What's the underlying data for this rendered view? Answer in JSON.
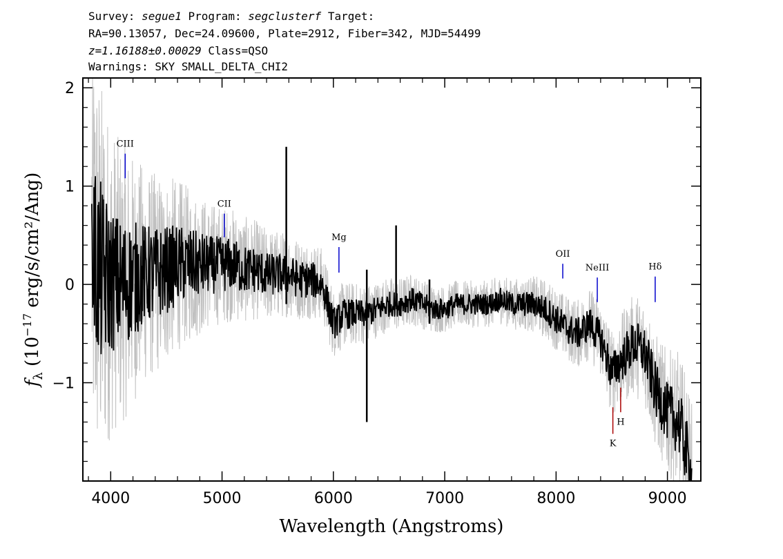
{
  "header": {
    "survey_label": "Survey:",
    "survey": "segue1",
    "program_label": "Program:",
    "program": "segclusterf",
    "target_label": "Target:",
    "line2": "RA=90.13057, Dec=24.09600, Plate=2912, Fiber=342, MJD=54499",
    "redshift": "z=1.16188±0.00029",
    "class_text": "Class=QSO",
    "warnings": "Warnings: SKY SMALL_DELTA_CHI2"
  },
  "chart_data": {
    "type": "line",
    "xlabel": "Wavelength (Angstroms)",
    "ylabel_prefix": "f",
    "ylabel_sub": "λ",
    "ylabel_main": " (10",
    "ylabel_exp": "−17",
    "ylabel_rest": " erg/s/cm²/Ang)",
    "xlim": [
      3750,
      9300
    ],
    "ylim": [
      -2.0,
      2.1
    ],
    "xticks": [
      4000,
      5000,
      6000,
      7000,
      8000,
      9000
    ],
    "xtick_labels": [
      "4000",
      "5000",
      "6000",
      "7000",
      "8000",
      "9000"
    ],
    "yticks": [
      -1,
      0,
      1,
      2
    ],
    "ytick_labels": [
      "−1",
      "0",
      "1",
      "2"
    ],
    "grid": false,
    "colors": {
      "error": "#c0c0c0",
      "flux": "#000000",
      "emission": "#0000cc",
      "absorption": "#aa0000"
    },
    "series": [
      {
        "role": "flux",
        "x": [
          3830,
          3900,
          4000,
          4100,
          4200,
          4300,
          4400,
          4500,
          4600,
          4700,
          4800,
          4900,
          5000,
          5100,
          5200,
          5300,
          5400,
          5500,
          5600,
          5700,
          5800,
          5900,
          6000,
          6100,
          6200,
          6300,
          6400,
          6500,
          6600,
          6700,
          6800,
          6900,
          7000,
          7100,
          7200,
          7300,
          7400,
          7500,
          7600,
          7700,
          7800,
          7900,
          8000,
          8100,
          8200,
          8300,
          8400,
          8500,
          8600,
          8700,
          8800,
          8900,
          9000,
          9100,
          9150,
          9200,
          9220
        ],
        "y": [
          0.4,
          0.1,
          0.05,
          0.0,
          0.05,
          0.1,
          0.1,
          0.15,
          0.2,
          0.2,
          0.2,
          0.2,
          0.2,
          0.2,
          0.15,
          0.15,
          0.1,
          0.1,
          0.1,
          0.05,
          0.05,
          0.0,
          -0.4,
          -0.3,
          -0.3,
          -0.3,
          -0.25,
          -0.2,
          -0.2,
          -0.15,
          -0.2,
          -0.25,
          -0.25,
          -0.2,
          -0.2,
          -0.2,
          -0.2,
          -0.15,
          -0.2,
          -0.2,
          -0.2,
          -0.25,
          -0.35,
          -0.45,
          -0.5,
          -0.4,
          -0.55,
          -0.9,
          -0.75,
          -0.6,
          -0.7,
          -1.1,
          -1.3,
          -1.4,
          -1.6,
          -1.9,
          -2.0
        ]
      },
      {
        "role": "error",
        "x": [
          3830,
          3900,
          4000,
          4100,
          4200,
          4300,
          4400,
          4500,
          4600,
          4700,
          4800,
          4900,
          5000,
          5200,
          5400,
          5600,
          5800,
          6000,
          6200,
          6400,
          6600,
          6800,
          7000,
          7200,
          7400,
          7600,
          7800,
          8000,
          8200,
          8400,
          8600,
          8800,
          9000,
          9100,
          9220
        ],
        "y": [
          1.4,
          1.3,
          1.0,
          0.9,
          0.8,
          0.7,
          0.65,
          0.6,
          0.55,
          0.5,
          0.45,
          0.4,
          0.38,
          0.34,
          0.3,
          0.27,
          0.25,
          0.22,
          0.2,
          0.18,
          0.17,
          0.16,
          0.15,
          0.15,
          0.15,
          0.16,
          0.18,
          0.2,
          0.22,
          0.25,
          0.3,
          0.35,
          0.4,
          0.45,
          0.5
        ]
      },
      {
        "role": "spikes",
        "x": [
          5577,
          6300,
          6563,
          6863
        ],
        "y_top": [
          1.4,
          0.15,
          0.6,
          0.05
        ],
        "y_bottom": [
          -0.2,
          -1.4,
          -0.2,
          -0.4
        ]
      }
    ],
    "line_markers": [
      {
        "label": "CIII",
        "x": 4130,
        "y_top": 1.33,
        "y_bottom": 1.08,
        "kind": "emission"
      },
      {
        "label": "CII",
        "x": 5020,
        "y_top": 0.72,
        "y_bottom": 0.48,
        "kind": "emission"
      },
      {
        "label": "Mg",
        "x": 6050,
        "y_top": 0.38,
        "y_bottom": 0.12,
        "kind": "emission"
      },
      {
        "label": "OII",
        "x": 8060,
        "y_top": 0.21,
        "y_bottom": 0.06,
        "kind": "emission"
      },
      {
        "label": "NeIII",
        "x": 8370,
        "y_top": 0.07,
        "y_bottom": -0.18,
        "kind": "emission"
      },
      {
        "label": "Hδ",
        "x": 8890,
        "y_top": 0.08,
        "y_bottom": -0.18,
        "kind": "emission"
      },
      {
        "label": "K",
        "x": 8510,
        "y_top": -1.25,
        "y_bottom": -1.52,
        "kind": "absorption"
      },
      {
        "label": "H",
        "x": 8580,
        "y_top": -1.05,
        "y_bottom": -1.3,
        "kind": "absorption"
      }
    ]
  }
}
